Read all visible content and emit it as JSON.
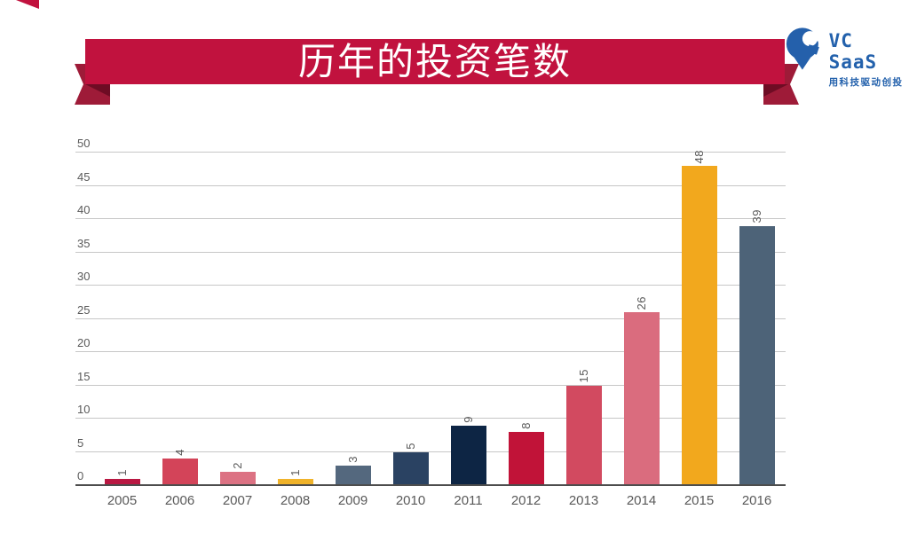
{
  "header": {
    "title": "历年的投资笔数",
    "banner_color": "#c1123e",
    "banner_fold_color": "#9e1b38",
    "banner_fold_dark_color": "#6e0c24"
  },
  "logo": {
    "name": "VC SaaS",
    "tagline": "用科技驱动创投",
    "color": "#2361ac",
    "mark": "vcsaas-pin-mark"
  },
  "chart_data": {
    "type": "bar",
    "title": "历年的投资笔数",
    "categories": [
      "2005",
      "2006",
      "2007",
      "2008",
      "2009",
      "2010",
      "2011",
      "2012",
      "2013",
      "2014",
      "2015",
      "2016"
    ],
    "values": [
      1,
      4,
      2,
      1,
      3,
      5,
      9,
      8,
      15,
      26,
      48,
      39
    ],
    "bar_colors": [
      "#b91842",
      "#d34459",
      "#dc7283",
      "#f0b32a",
      "#54687e",
      "#2a4262",
      "#0d2544",
      "#c11338",
      "#d24a60",
      "#da6c7e",
      "#f2a81d",
      "#4d6378"
    ],
    "xlabel": "",
    "ylabel": "",
    "ylim": [
      0,
      50
    ],
    "yticks": [
      0,
      5,
      10,
      15,
      20,
      25,
      30,
      35,
      40,
      45,
      50
    ],
    "grid": true,
    "gridline_color": "#c6c6c6",
    "axis_line_color": "#4d4d4d",
    "tick_label_color": "#595959",
    "data_labels": true,
    "data_label_rotation": -90,
    "legend": "none"
  }
}
